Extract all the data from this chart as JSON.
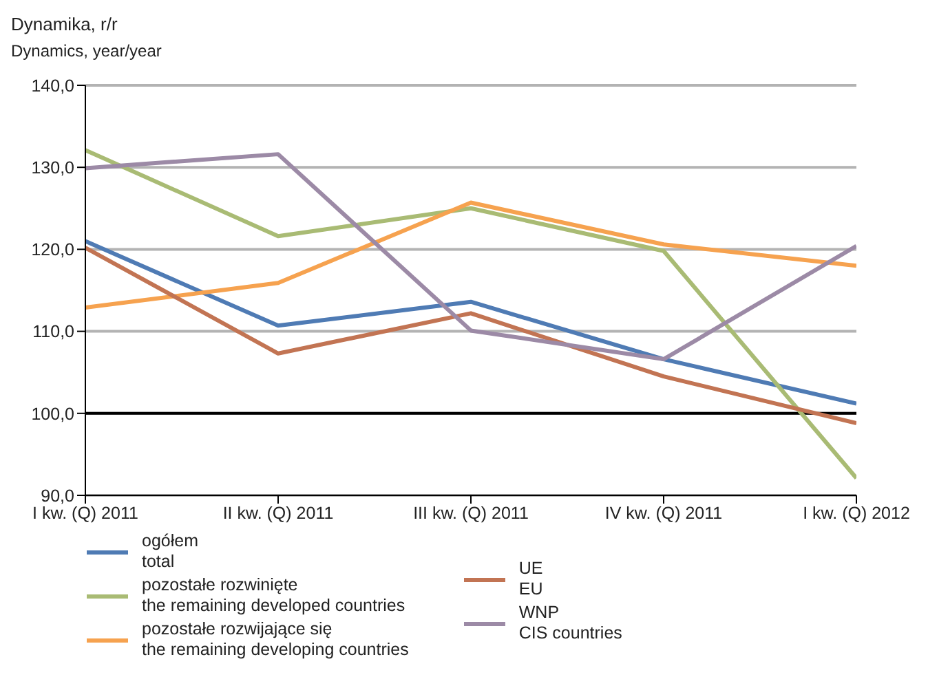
{
  "chart_data": {
    "type": "line",
    "title": "Dynamika, r/r",
    "subtitle": "Dynamics, year/year",
    "categories": [
      "I kw. (Q) 2011",
      "II kw. (Q) 2011",
      "III kw. (Q) 2011",
      "IV kw. (Q) 2011",
      "I kw. (Q) 2012"
    ],
    "series": [
      {
        "name": "ogółem\ntotal",
        "color": "#4f7bb4",
        "values": [
          121.0,
          110.7,
          113.6,
          106.6,
          101.2
        ]
      },
      {
        "name": "pozostałe rozwinięte\nthe remaining developed countries",
        "color": "#a9bb74",
        "values": [
          132.1,
          121.6,
          125.0,
          119.8,
          92.1
        ]
      },
      {
        "name": "pozostałe rozwijające się\nthe remaining developing countries",
        "color": "#f6a24f",
        "values": [
          112.9,
          115.9,
          125.7,
          120.6,
          118.0
        ]
      },
      {
        "name": "UE\nEU",
        "color": "#c27453",
        "values": [
          120.2,
          107.3,
          112.2,
          104.5,
          98.8
        ]
      },
      {
        "name": "WNP\nCIS countries",
        "color": "#9c8aa6",
        "values": [
          129.9,
          131.6,
          110.1,
          106.6,
          120.4
        ]
      }
    ],
    "ylim": [
      90,
      140
    ],
    "yticks": [
      {
        "value": 90,
        "label": "90,0"
      },
      {
        "value": 100,
        "label": "100,0"
      },
      {
        "value": 110,
        "label": "110,0"
      },
      {
        "value": 120,
        "label": "120,0"
      },
      {
        "value": 130,
        "label": "130,0"
      },
      {
        "value": 140,
        "label": "140,0"
      }
    ],
    "ref_lines": [
      {
        "axis": "y",
        "value": 100,
        "color": "#000000"
      }
    ],
    "grid": "y",
    "legend": "bottom",
    "marker": "none",
    "line_style": "solid"
  }
}
